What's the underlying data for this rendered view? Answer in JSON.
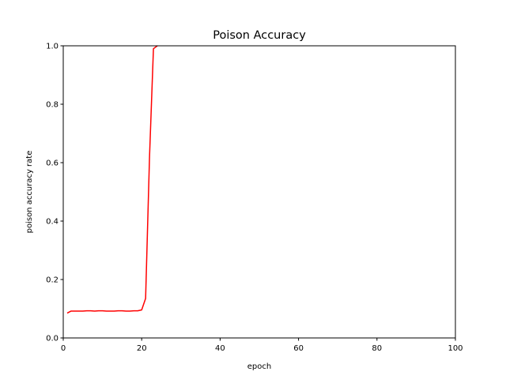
{
  "chart_data": {
    "type": "line",
    "title": "Poison Accuracy",
    "xlabel": "epoch",
    "ylabel": "poison accuracy rate",
    "xlim": [
      0,
      100
    ],
    "ylim": [
      0,
      1.0
    ],
    "xticks": [
      0,
      20,
      40,
      60,
      80,
      100
    ],
    "xtick_labels": [
      "0",
      "20",
      "40",
      "60",
      "80",
      "100"
    ],
    "yticks": [
      0.0,
      0.2,
      0.4,
      0.6,
      0.8,
      1.0
    ],
    "ytick_labels": [
      "0.0",
      "0.2",
      "0.4",
      "0.6",
      "0.8",
      "1.0"
    ],
    "grid": false,
    "series": [
      {
        "color": "#ff0000",
        "x": [
          1,
          2,
          3,
          4,
          5,
          6,
          7,
          8,
          9,
          10,
          11,
          12,
          13,
          14,
          15,
          16,
          17,
          18,
          19,
          20,
          21,
          22,
          23,
          24
        ],
        "y": [
          0.085,
          0.092,
          0.092,
          0.092,
          0.092,
          0.093,
          0.093,
          0.092,
          0.093,
          0.093,
          0.092,
          0.092,
          0.092,
          0.093,
          0.093,
          0.092,
          0.092,
          0.093,
          0.093,
          0.096,
          0.135,
          0.62,
          0.99,
          1.0
        ]
      }
    ]
  }
}
